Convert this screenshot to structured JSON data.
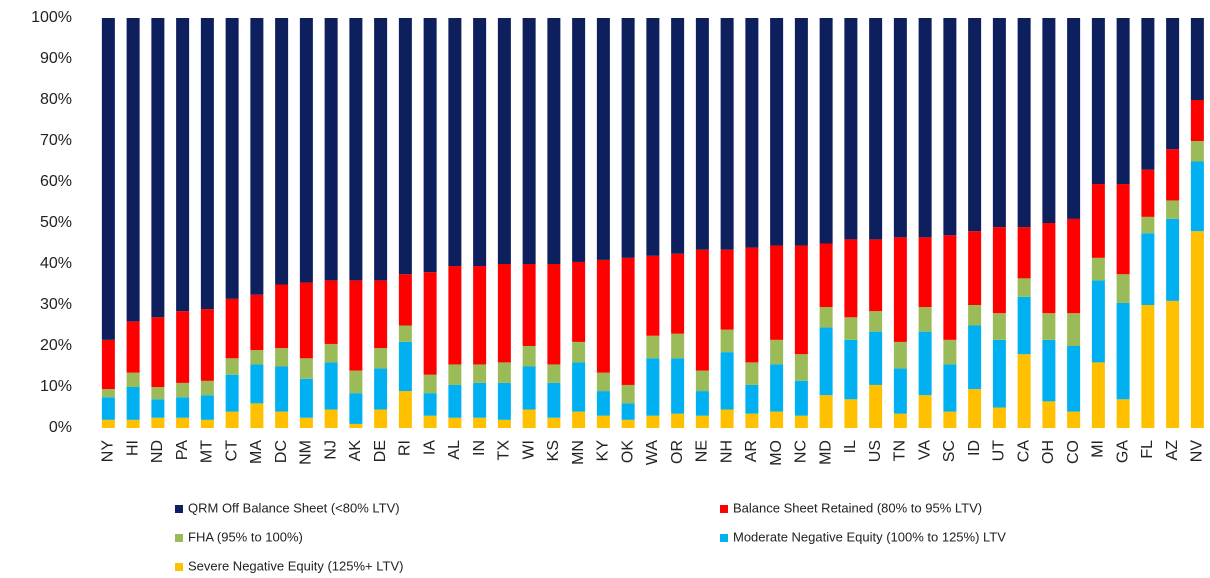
{
  "chart_data": {
    "type": "stacked_bar",
    "categories": [
      "NY",
      "HI",
      "ND",
      "PA",
      "MT",
      "CT",
      "MA",
      "DC",
      "NM",
      "NJ",
      "AK",
      "DE",
      "RI",
      "IA",
      "AL",
      "IN",
      "TX",
      "WI",
      "KS",
      "MN",
      "KY",
      "OK",
      "WA",
      "OR",
      "NE",
      "NH",
      "AR",
      "MO",
      "NC",
      "MD",
      "IL",
      "US",
      "TN",
      "VA",
      "SC",
      "ID",
      "UT",
      "CA",
      "OH",
      "CO",
      "MI",
      "GA",
      "FL",
      "AZ",
      "NV"
    ],
    "series": [
      {
        "name": "Severe Negative Equity (125%+ LTV)",
        "color": "#ffc000",
        "values": [
          2,
          2,
          2.5,
          2.5,
          2,
          4,
          6,
          4,
          2.5,
          4.5,
          1,
          4.5,
          9,
          3,
          2.5,
          2.5,
          2,
          4.5,
          2.5,
          4,
          3,
          2,
          3,
          3.5,
          3,
          4.5,
          3.5,
          4,
          3,
          8,
          7,
          10.5,
          3.5,
          8,
          4,
          9.5,
          5,
          18,
          6.5,
          4,
          16,
          7,
          30,
          31,
          48
        ]
      },
      {
        "name": "Moderate Negative Equity (100% to 125%) LTV",
        "color": "#00b0f0",
        "values": [
          5.5,
          8,
          4.5,
          5,
          6,
          9,
          9.5,
          11,
          9.5,
          11.5,
          7.5,
          10,
          12,
          5.5,
          8,
          8.5,
          9,
          10.5,
          8.5,
          12,
          6,
          4,
          14,
          13.5,
          6,
          14,
          7,
          11.5,
          8.5,
          16.5,
          14.5,
          13,
          11,
          15.5,
          11.5,
          15.5,
          16.5,
          14,
          15,
          16,
          20,
          23.5,
          17.5,
          20,
          17
        ]
      },
      {
        "name": "FHA (95% to 100%)",
        "color": "#9bbb59",
        "values": [
          2,
          3.5,
          3,
          3.5,
          3.5,
          4,
          3.5,
          4.5,
          5,
          4.5,
          5.5,
          5,
          4,
          4.5,
          5,
          4.5,
          5,
          5,
          4.5,
          5,
          4.5,
          4.5,
          5.5,
          6,
          5,
          5.5,
          5.5,
          6,
          6.5,
          5,
          5.5,
          5,
          6.5,
          6,
          6,
          5,
          6.5,
          4.5,
          6.5,
          8,
          5.5,
          7,
          4,
          4.5,
          5
        ]
      },
      {
        "name": "Balance Sheet Retained (80% to 95% LTV)",
        "color": "#ff0000",
        "values": [
          12,
          12.5,
          17,
          17.5,
          17.5,
          14.5,
          13.5,
          15.5,
          18.5,
          15.5,
          22,
          16.5,
          12.5,
          25,
          24,
          24,
          24,
          20,
          24.5,
          19.5,
          27.5,
          31,
          19.5,
          19.5,
          29.5,
          19.5,
          28,
          23,
          26.5,
          15.5,
          19,
          17.5,
          25.5,
          17,
          25.5,
          18,
          21,
          12.5,
          22,
          23,
          18,
          22,
          11.5,
          12.5,
          10
        ]
      },
      {
        "name": "QRM Off Balance Sheet (<80% LTV)",
        "color": "#0d1f5c",
        "values": [
          78.5,
          74,
          73,
          71.5,
          71,
          68.5,
          67.5,
          65,
          64.5,
          64,
          64,
          64,
          62.5,
          62,
          60.5,
          60.5,
          60,
          60,
          60,
          59.5,
          59,
          58.5,
          58,
          57.5,
          56.5,
          56.5,
          56,
          55.5,
          55.5,
          55,
          54,
          54,
          53.5,
          53.5,
          53,
          52,
          51,
          51,
          50,
          49,
          40.5,
          40.5,
          37,
          32,
          20
        ]
      }
    ],
    "ylim": [
      0,
      100
    ],
    "yticks": [
      {
        "value": 0,
        "label": "0%"
      },
      {
        "value": 10,
        "label": "10%"
      },
      {
        "value": 20,
        "label": "20%"
      },
      {
        "value": 30,
        "label": "30%"
      },
      {
        "value": 40,
        "label": "40%"
      },
      {
        "value": 50,
        "label": "50%"
      },
      {
        "value": 60,
        "label": "60%"
      },
      {
        "value": 70,
        "label": "70%"
      },
      {
        "value": 80,
        "label": "80%"
      },
      {
        "value": 90,
        "label": "90%"
      },
      {
        "value": 100,
        "label": "100%"
      }
    ],
    "grid": false,
    "legend": "bottom"
  }
}
